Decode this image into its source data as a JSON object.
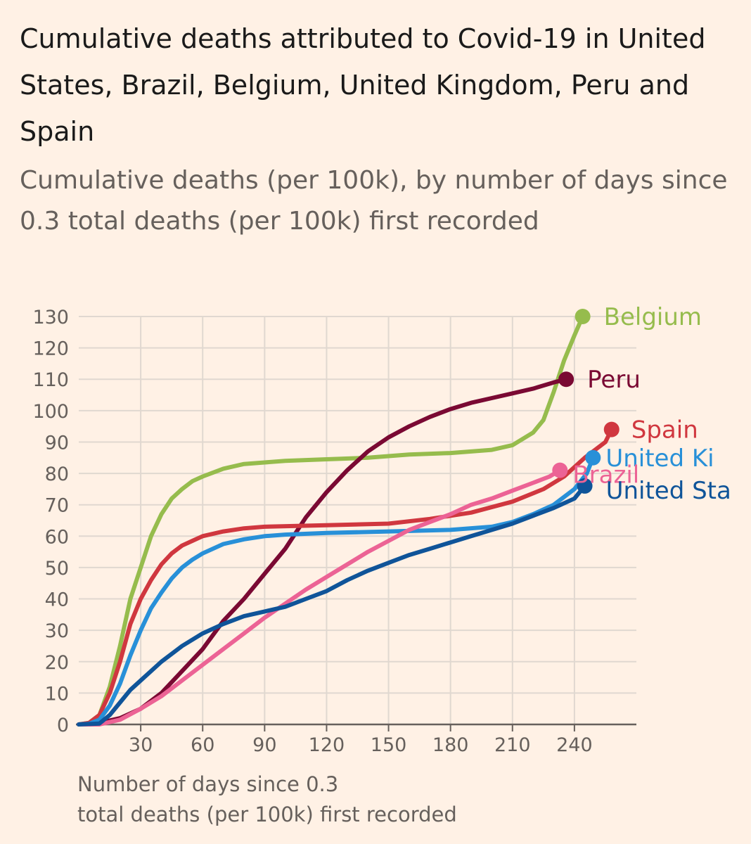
{
  "title": "Cumulative deaths attributed to Covid-19 in United States, Brazil, Belgium, United Kingdom, Peru and Spain",
  "subtitle": "Cumulative deaths (per 100k), by number of days since 0.3 total deaths (per 100k) first recorded",
  "colors": {
    "background": "#fff1e5",
    "grid": "#e0d8d0",
    "axis": "#66605c"
  },
  "chart_data": {
    "type": "line",
    "xlabel": [
      "Number of days since 0.3",
      "total deaths (per 100k) first recorded"
    ],
    "ylabel": "",
    "xlim": [
      0,
      270
    ],
    "ylim": [
      0,
      130
    ],
    "xticks": [
      30,
      60,
      90,
      120,
      150,
      180,
      210,
      240
    ],
    "yticks": [
      0,
      10,
      20,
      30,
      40,
      50,
      60,
      70,
      80,
      90,
      100,
      110,
      120,
      130
    ],
    "grid": true,
    "legend": "end-of-line labels",
    "series": [
      {
        "name": "Belgium",
        "label": "Belgium",
        "color": "#96bc4d",
        "points": [
          [
            0,
            0
          ],
          [
            5,
            0.5
          ],
          [
            10,
            3
          ],
          [
            15,
            12
          ],
          [
            20,
            25
          ],
          [
            25,
            40
          ],
          [
            30,
            50
          ],
          [
            35,
            60
          ],
          [
            40,
            67
          ],
          [
            45,
            72
          ],
          [
            50,
            75
          ],
          [
            55,
            77.5
          ],
          [
            60,
            79
          ],
          [
            70,
            81.5
          ],
          [
            80,
            83
          ],
          [
            90,
            83.5
          ],
          [
            100,
            84
          ],
          [
            120,
            84.5
          ],
          [
            140,
            85
          ],
          [
            160,
            86
          ],
          [
            180,
            86.5
          ],
          [
            200,
            87.5
          ],
          [
            210,
            89
          ],
          [
            220,
            93
          ],
          [
            225,
            97
          ],
          [
            230,
            106
          ],
          [
            235,
            116
          ],
          [
            240,
            124
          ],
          [
            244,
            130
          ]
        ]
      },
      {
        "name": "Peru",
        "label": "Peru",
        "color": "#7a0933",
        "points": [
          [
            0,
            0
          ],
          [
            10,
            0.5
          ],
          [
            20,
            2
          ],
          [
            30,
            5
          ],
          [
            40,
            10
          ],
          [
            50,
            17
          ],
          [
            60,
            24
          ],
          [
            70,
            33
          ],
          [
            80,
            40
          ],
          [
            90,
            48
          ],
          [
            100,
            56
          ],
          [
            110,
            66
          ],
          [
            120,
            74
          ],
          [
            130,
            81
          ],
          [
            140,
            87
          ],
          [
            150,
            91.5
          ],
          [
            160,
            95
          ],
          [
            170,
            98
          ],
          [
            180,
            100.5
          ],
          [
            190,
            102.5
          ],
          [
            200,
            104
          ],
          [
            210,
            105.5
          ],
          [
            220,
            107
          ],
          [
            230,
            109
          ],
          [
            236,
            110
          ]
        ]
      },
      {
        "name": "Spain",
        "label": "Spain",
        "color": "#d0373f",
        "points": [
          [
            0,
            0
          ],
          [
            5,
            0.5
          ],
          [
            10,
            3
          ],
          [
            15,
            10
          ],
          [
            20,
            20
          ],
          [
            25,
            32
          ],
          [
            30,
            40
          ],
          [
            35,
            46
          ],
          [
            40,
            51
          ],
          [
            45,
            54.5
          ],
          [
            50,
            57
          ],
          [
            55,
            58.5
          ],
          [
            60,
            60
          ],
          [
            70,
            61.5
          ],
          [
            80,
            62.5
          ],
          [
            90,
            63
          ],
          [
            120,
            63.5
          ],
          [
            150,
            64
          ],
          [
            170,
            65.5
          ],
          [
            190,
            67.5
          ],
          [
            210,
            71
          ],
          [
            225,
            75
          ],
          [
            235,
            79
          ],
          [
            245,
            85
          ],
          [
            255,
            90
          ],
          [
            258,
            94
          ]
        ]
      },
      {
        "name": "United Kingdom",
        "label": "United Ki",
        "color": "#2890d8",
        "points": [
          [
            0,
            0
          ],
          [
            5,
            0.2
          ],
          [
            10,
            1.5
          ],
          [
            15,
            6
          ],
          [
            20,
            13
          ],
          [
            25,
            22
          ],
          [
            30,
            30
          ],
          [
            35,
            37
          ],
          [
            40,
            42
          ],
          [
            45,
            46.5
          ],
          [
            50,
            50
          ],
          [
            55,
            52.5
          ],
          [
            60,
            54.5
          ],
          [
            70,
            57.5
          ],
          [
            80,
            59
          ],
          [
            90,
            60
          ],
          [
            100,
            60.5
          ],
          [
            120,
            61
          ],
          [
            150,
            61.5
          ],
          [
            180,
            62
          ],
          [
            200,
            63
          ],
          [
            210,
            64.5
          ],
          [
            220,
            67
          ],
          [
            230,
            70
          ],
          [
            240,
            75
          ],
          [
            246,
            80
          ],
          [
            249,
            85
          ]
        ]
      },
      {
        "name": "Brazil",
        "label": "Brazil",
        "color": "#ec6395",
        "points": [
          [
            0,
            0
          ],
          [
            10,
            0
          ],
          [
            20,
            1.5
          ],
          [
            30,
            5
          ],
          [
            40,
            9
          ],
          [
            50,
            14
          ],
          [
            60,
            19
          ],
          [
            70,
            24
          ],
          [
            80,
            29
          ],
          [
            90,
            34
          ],
          [
            100,
            38.5
          ],
          [
            110,
            43
          ],
          [
            120,
            47
          ],
          [
            130,
            51
          ],
          [
            140,
            55
          ],
          [
            150,
            58.5
          ],
          [
            160,
            62
          ],
          [
            170,
            64.5
          ],
          [
            180,
            67
          ],
          [
            190,
            70
          ],
          [
            200,
            72
          ],
          [
            210,
            74.5
          ],
          [
            220,
            77
          ],
          [
            228,
            79
          ],
          [
            233,
            81
          ]
        ]
      },
      {
        "name": "United States",
        "label": "United Sta",
        "color": "#0f5499",
        "points": [
          [
            0,
            0
          ],
          [
            10,
            0.3
          ],
          [
            15,
            3
          ],
          [
            20,
            7
          ],
          [
            25,
            11
          ],
          [
            30,
            14
          ],
          [
            40,
            20
          ],
          [
            50,
            25
          ],
          [
            60,
            29
          ],
          [
            70,
            32
          ],
          [
            80,
            34.5
          ],
          [
            90,
            36
          ],
          [
            100,
            37.5
          ],
          [
            110,
            40
          ],
          [
            120,
            42.5
          ],
          [
            130,
            46
          ],
          [
            140,
            49
          ],
          [
            150,
            51.5
          ],
          [
            160,
            54
          ],
          [
            170,
            56
          ],
          [
            180,
            58
          ],
          [
            190,
            60
          ],
          [
            200,
            62
          ],
          [
            210,
            64
          ],
          [
            220,
            66.5
          ],
          [
            230,
            69
          ],
          [
            240,
            72
          ],
          [
            245,
            76
          ]
        ]
      }
    ]
  }
}
